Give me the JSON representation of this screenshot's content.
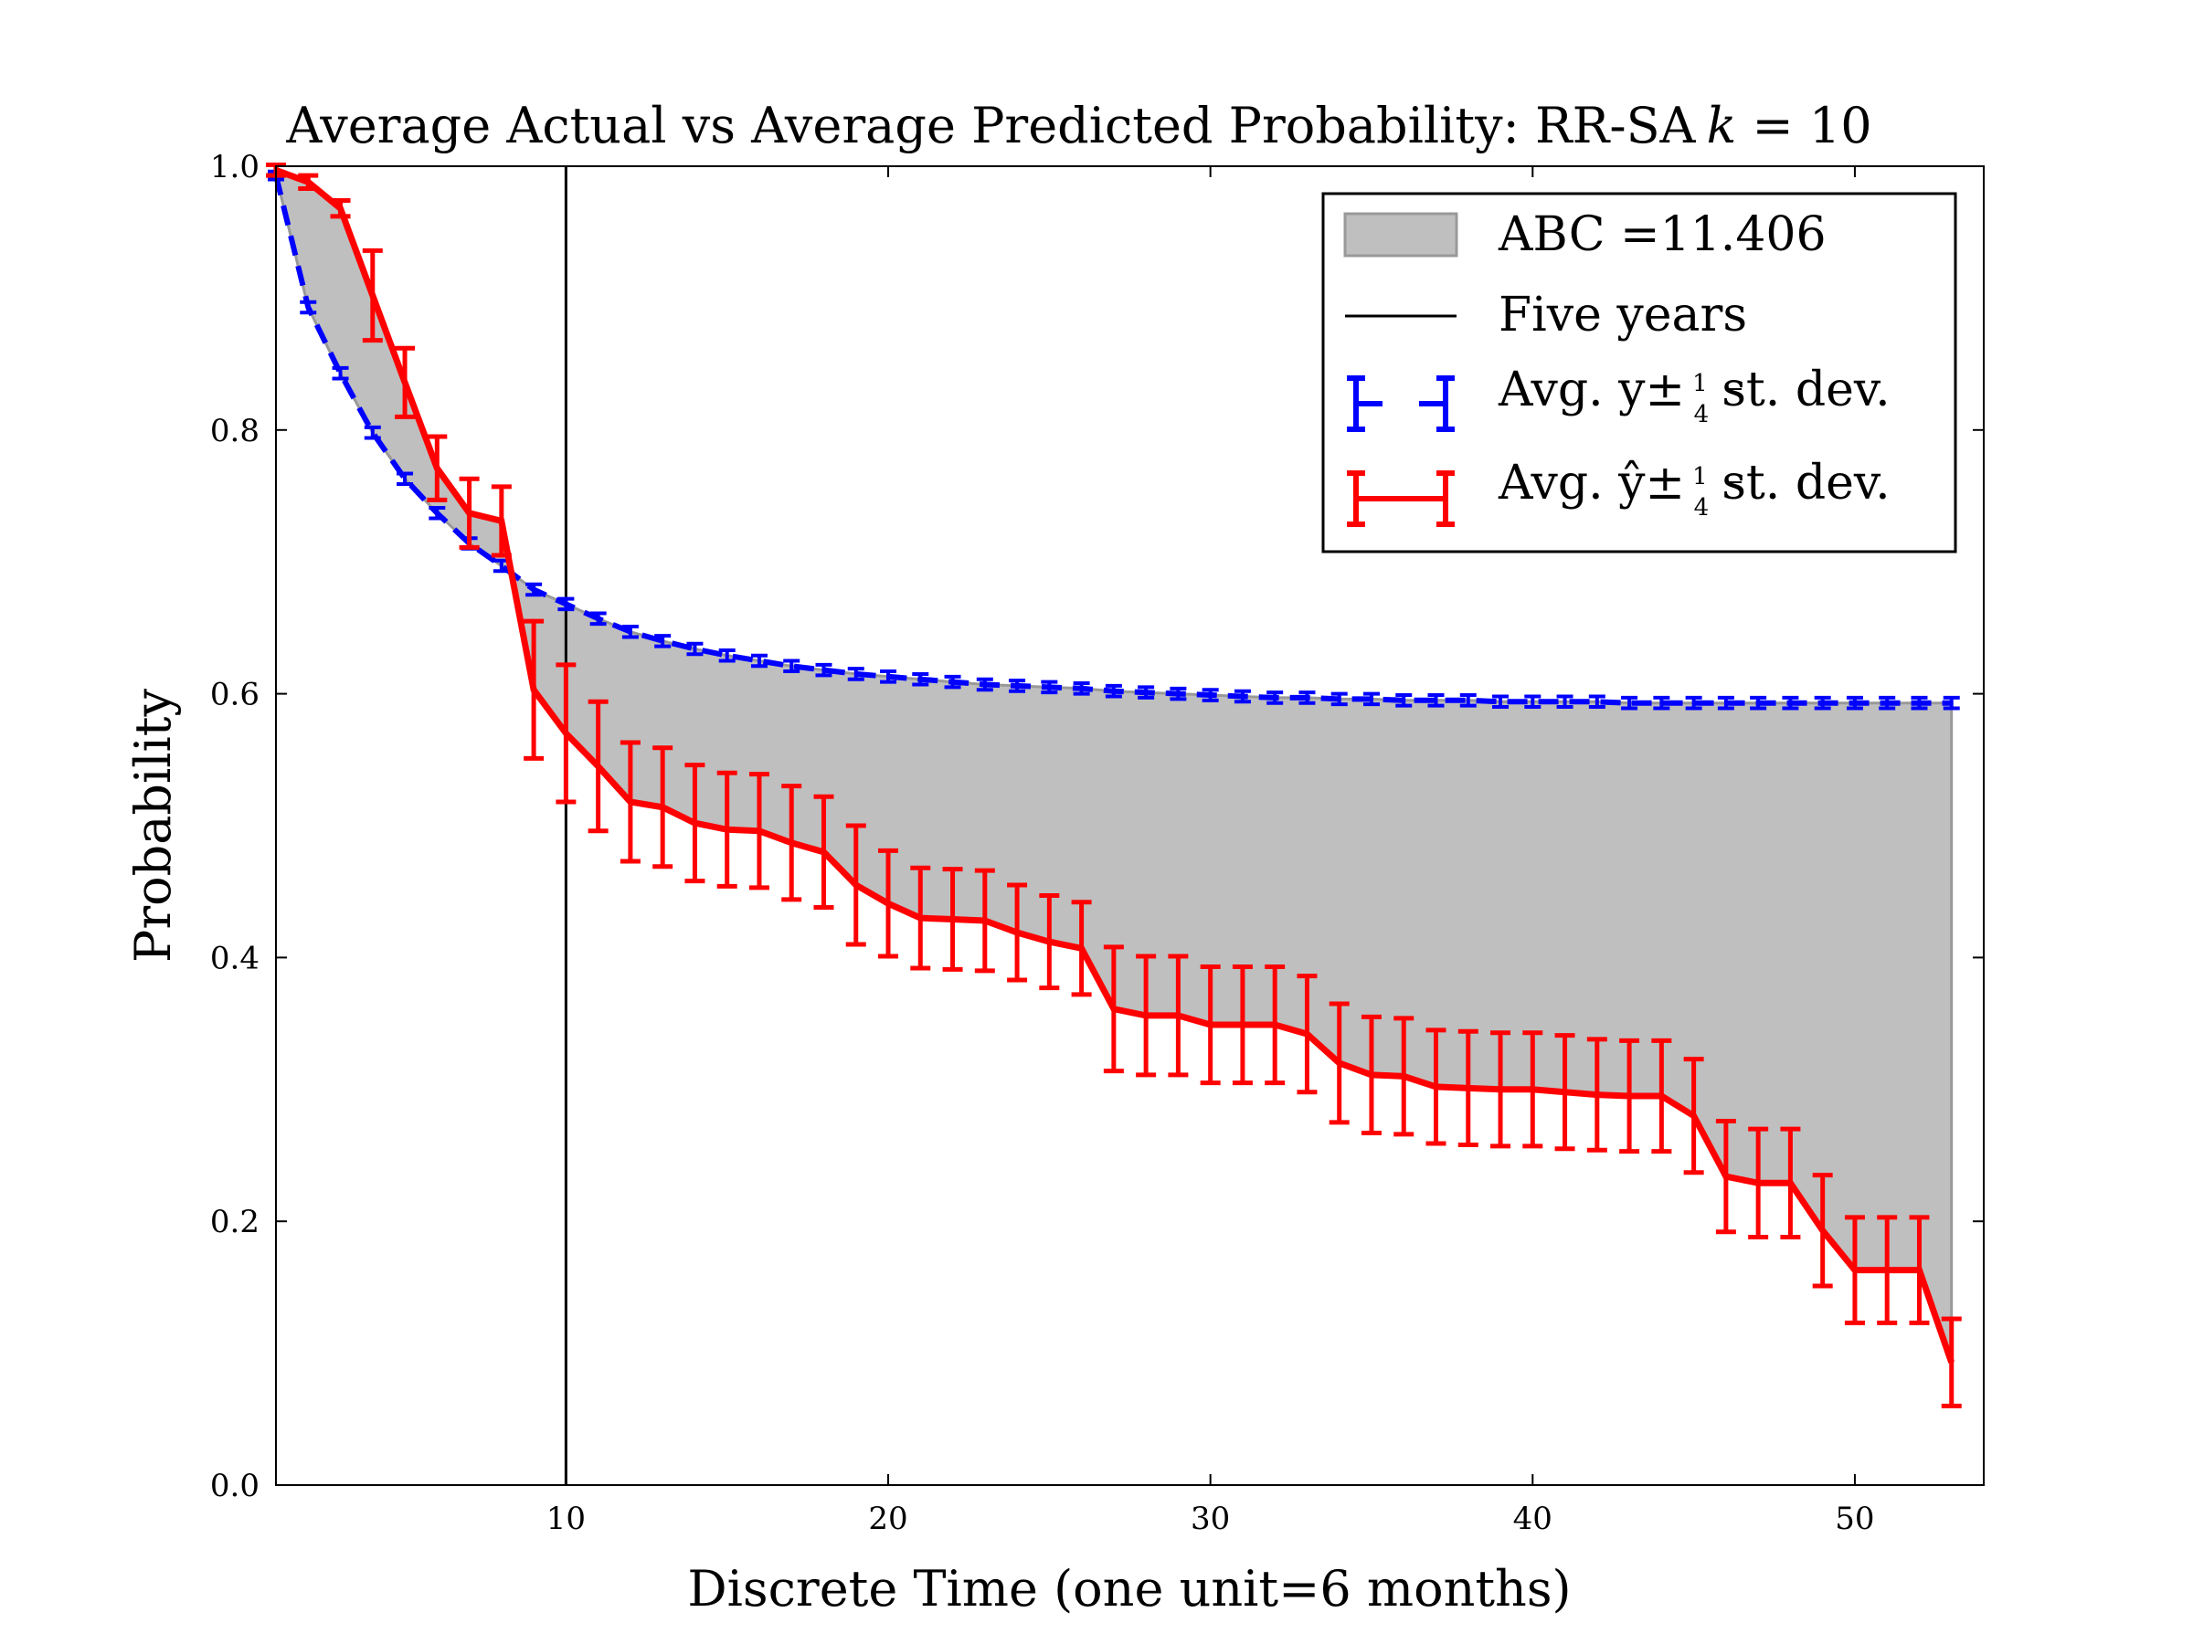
{
  "chart_data": {
    "type": "line",
    "title": "Average Actual vs Average Predicted Probability: RR-SA",
    "title_suffix_var": "k",
    "title_suffix_eq": " = 10",
    "xlabel": "Discrete Time (one unit=6 months)",
    "ylabel": "Probability",
    "xlim": [
      1,
      54
    ],
    "ylim": [
      0.0,
      1.0
    ],
    "x_ticks": [
      10,
      20,
      30,
      40,
      50
    ],
    "y_ticks": [
      0.0,
      0.2,
      0.4,
      0.6,
      0.8,
      1.0
    ],
    "y_tick_labels": [
      "0.0",
      "0.2",
      "0.4",
      "0.6",
      "0.8",
      "1.0"
    ],
    "x_tick_labels": [
      "10",
      "20",
      "30",
      "40",
      "50"
    ],
    "five_years_x": 10,
    "x": [
      1,
      2,
      3,
      4,
      5,
      6,
      7,
      8,
      9,
      10,
      11,
      12,
      13,
      14,
      15,
      16,
      17,
      18,
      19,
      20,
      21,
      22,
      23,
      24,
      25,
      26,
      27,
      28,
      29,
      30,
      31,
      32,
      33,
      34,
      35,
      36,
      37,
      38,
      39,
      40,
      41,
      42,
      43,
      44,
      45,
      46,
      47,
      48,
      49,
      50,
      51,
      52,
      53
    ],
    "series": [
      {
        "name": "Avg. y ± 1/4 st. dev.",
        "color": "#0000ff",
        "style": "dashed",
        "values": [
          0.993,
          0.893,
          0.843,
          0.798,
          0.763,
          0.737,
          0.714,
          0.697,
          0.679,
          0.668,
          0.657,
          0.647,
          0.64,
          0.634,
          0.629,
          0.625,
          0.621,
          0.618,
          0.615,
          0.613,
          0.611,
          0.609,
          0.607,
          0.606,
          0.605,
          0.604,
          0.602,
          0.601,
          0.6,
          0.599,
          0.598,
          0.597,
          0.597,
          0.596,
          0.596,
          0.595,
          0.595,
          0.595,
          0.594,
          0.594,
          0.594,
          0.594,
          0.593,
          0.593,
          0.593,
          0.593,
          0.593,
          0.593,
          0.593,
          0.593,
          0.593,
          0.593,
          0.593
        ],
        "err": [
          0.003,
          0.004,
          0.004,
          0.004,
          0.004,
          0.004,
          0.004,
          0.004,
          0.004,
          0.004,
          0.004,
          0.004,
          0.004,
          0.004,
          0.004,
          0.004,
          0.004,
          0.004,
          0.004,
          0.004,
          0.004,
          0.004,
          0.004,
          0.004,
          0.004,
          0.004,
          0.004,
          0.004,
          0.004,
          0.004,
          0.004,
          0.004,
          0.004,
          0.004,
          0.004,
          0.004,
          0.004,
          0.004,
          0.004,
          0.004,
          0.004,
          0.004,
          0.004,
          0.004,
          0.004,
          0.004,
          0.004,
          0.004,
          0.004,
          0.004,
          0.004,
          0.004,
          0.004
        ]
      },
      {
        "name": "Avg. ŷ ± 1/4 st. dev.",
        "color": "#ff0000",
        "style": "solid",
        "values": [
          0.997,
          0.988,
          0.968,
          0.902,
          0.836,
          0.771,
          0.737,
          0.731,
          0.603,
          0.57,
          0.545,
          0.518,
          0.514,
          0.502,
          0.497,
          0.496,
          0.487,
          0.48,
          0.455,
          0.441,
          0.43,
          0.429,
          0.428,
          0.419,
          0.412,
          0.407,
          0.361,
          0.356,
          0.356,
          0.349,
          0.349,
          0.349,
          0.342,
          0.32,
          0.311,
          0.31,
          0.302,
          0.301,
          0.3,
          0.3,
          0.298,
          0.296,
          0.295,
          0.295,
          0.28,
          0.234,
          0.229,
          0.229,
          0.193,
          0.163,
          0.163,
          0.163,
          0.093
        ]
      }
    ],
    "red_err": [
      0.004,
      0.005,
      0.006,
      0.034,
      0.026,
      0.024,
      0.026,
      0.026,
      0.052,
      0.052,
      0.049,
      0.045,
      0.045,
      0.044,
      0.043,
      0.043,
      0.043,
      0.042,
      0.045,
      0.04,
      0.038,
      0.038,
      0.038,
      0.036,
      0.035,
      0.035,
      0.047,
      0.045,
      0.045,
      0.044,
      0.044,
      0.044,
      0.044,
      0.045,
      0.044,
      0.044,
      0.043,
      0.043,
      0.043,
      0.043,
      0.043,
      0.042,
      0.042,
      0.042,
      0.043,
      0.042,
      0.041,
      0.041,
      0.042,
      0.04,
      0.04,
      0.04,
      0.033
    ],
    "legend": {
      "placement": "top-right",
      "abc_label": "ABC =11.406",
      "five_years_label": "Five years",
      "actual_prefix": "Avg. y±",
      "pred_prefix": "Avg. ŷ±",
      "frac_num": "1",
      "frac_den": "4",
      "suffix": "st. dev."
    },
    "colors": {
      "fill": "#bfbfbf",
      "fill_edge": "#999999",
      "five_years": "#000000"
    }
  }
}
